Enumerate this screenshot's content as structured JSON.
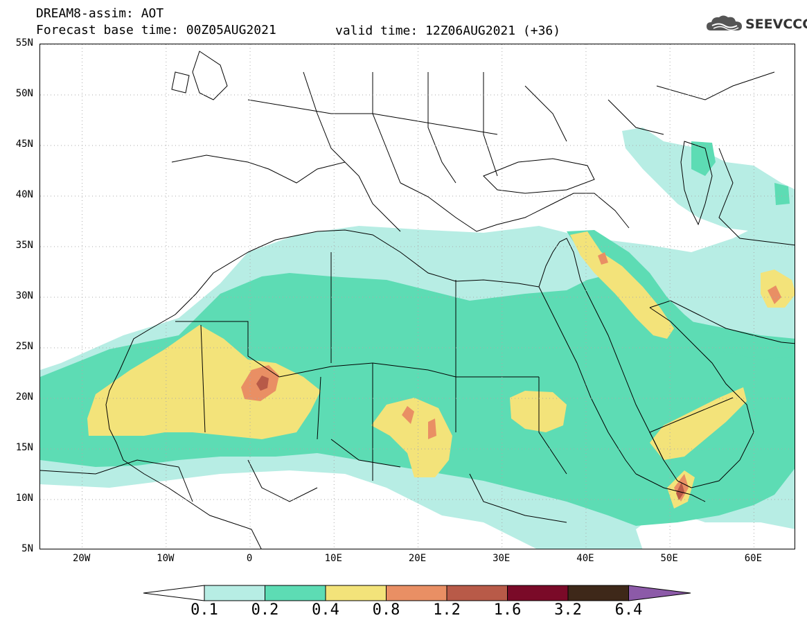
{
  "header": {
    "title_line1": "DREAM8-assim: AOT",
    "title_line2": "Forecast base time: 00Z05AUG2021",
    "valid_time": "valid time: 12Z06AUG2021 (+36)",
    "logo_text": "SEEVCCC"
  },
  "map": {
    "lat_labels": [
      "55N",
      "50N",
      "45N",
      "40N",
      "35N",
      "30N",
      "25N",
      "20N",
      "15N",
      "10N",
      "5N"
    ],
    "lon_labels": [
      "20W",
      "10W",
      "0",
      "10E",
      "20E",
      "30E",
      "40E",
      "50E",
      "60E"
    ],
    "extent": {
      "lon_min": -25,
      "lon_max": 65,
      "lat_min": 5,
      "lat_max": 55
    }
  },
  "colorbar": {
    "labels": [
      "0.1",
      "0.2",
      "0.4",
      "0.8",
      "1.2",
      "1.6",
      "3.2",
      "6.4"
    ],
    "colors": [
      "#b7ede4",
      "#5ddcb4",
      "#f3e37a",
      "#e98f64",
      "#b85a48",
      "#7a0a28",
      "#3e2819",
      "#8c5aa8"
    ]
  }
}
